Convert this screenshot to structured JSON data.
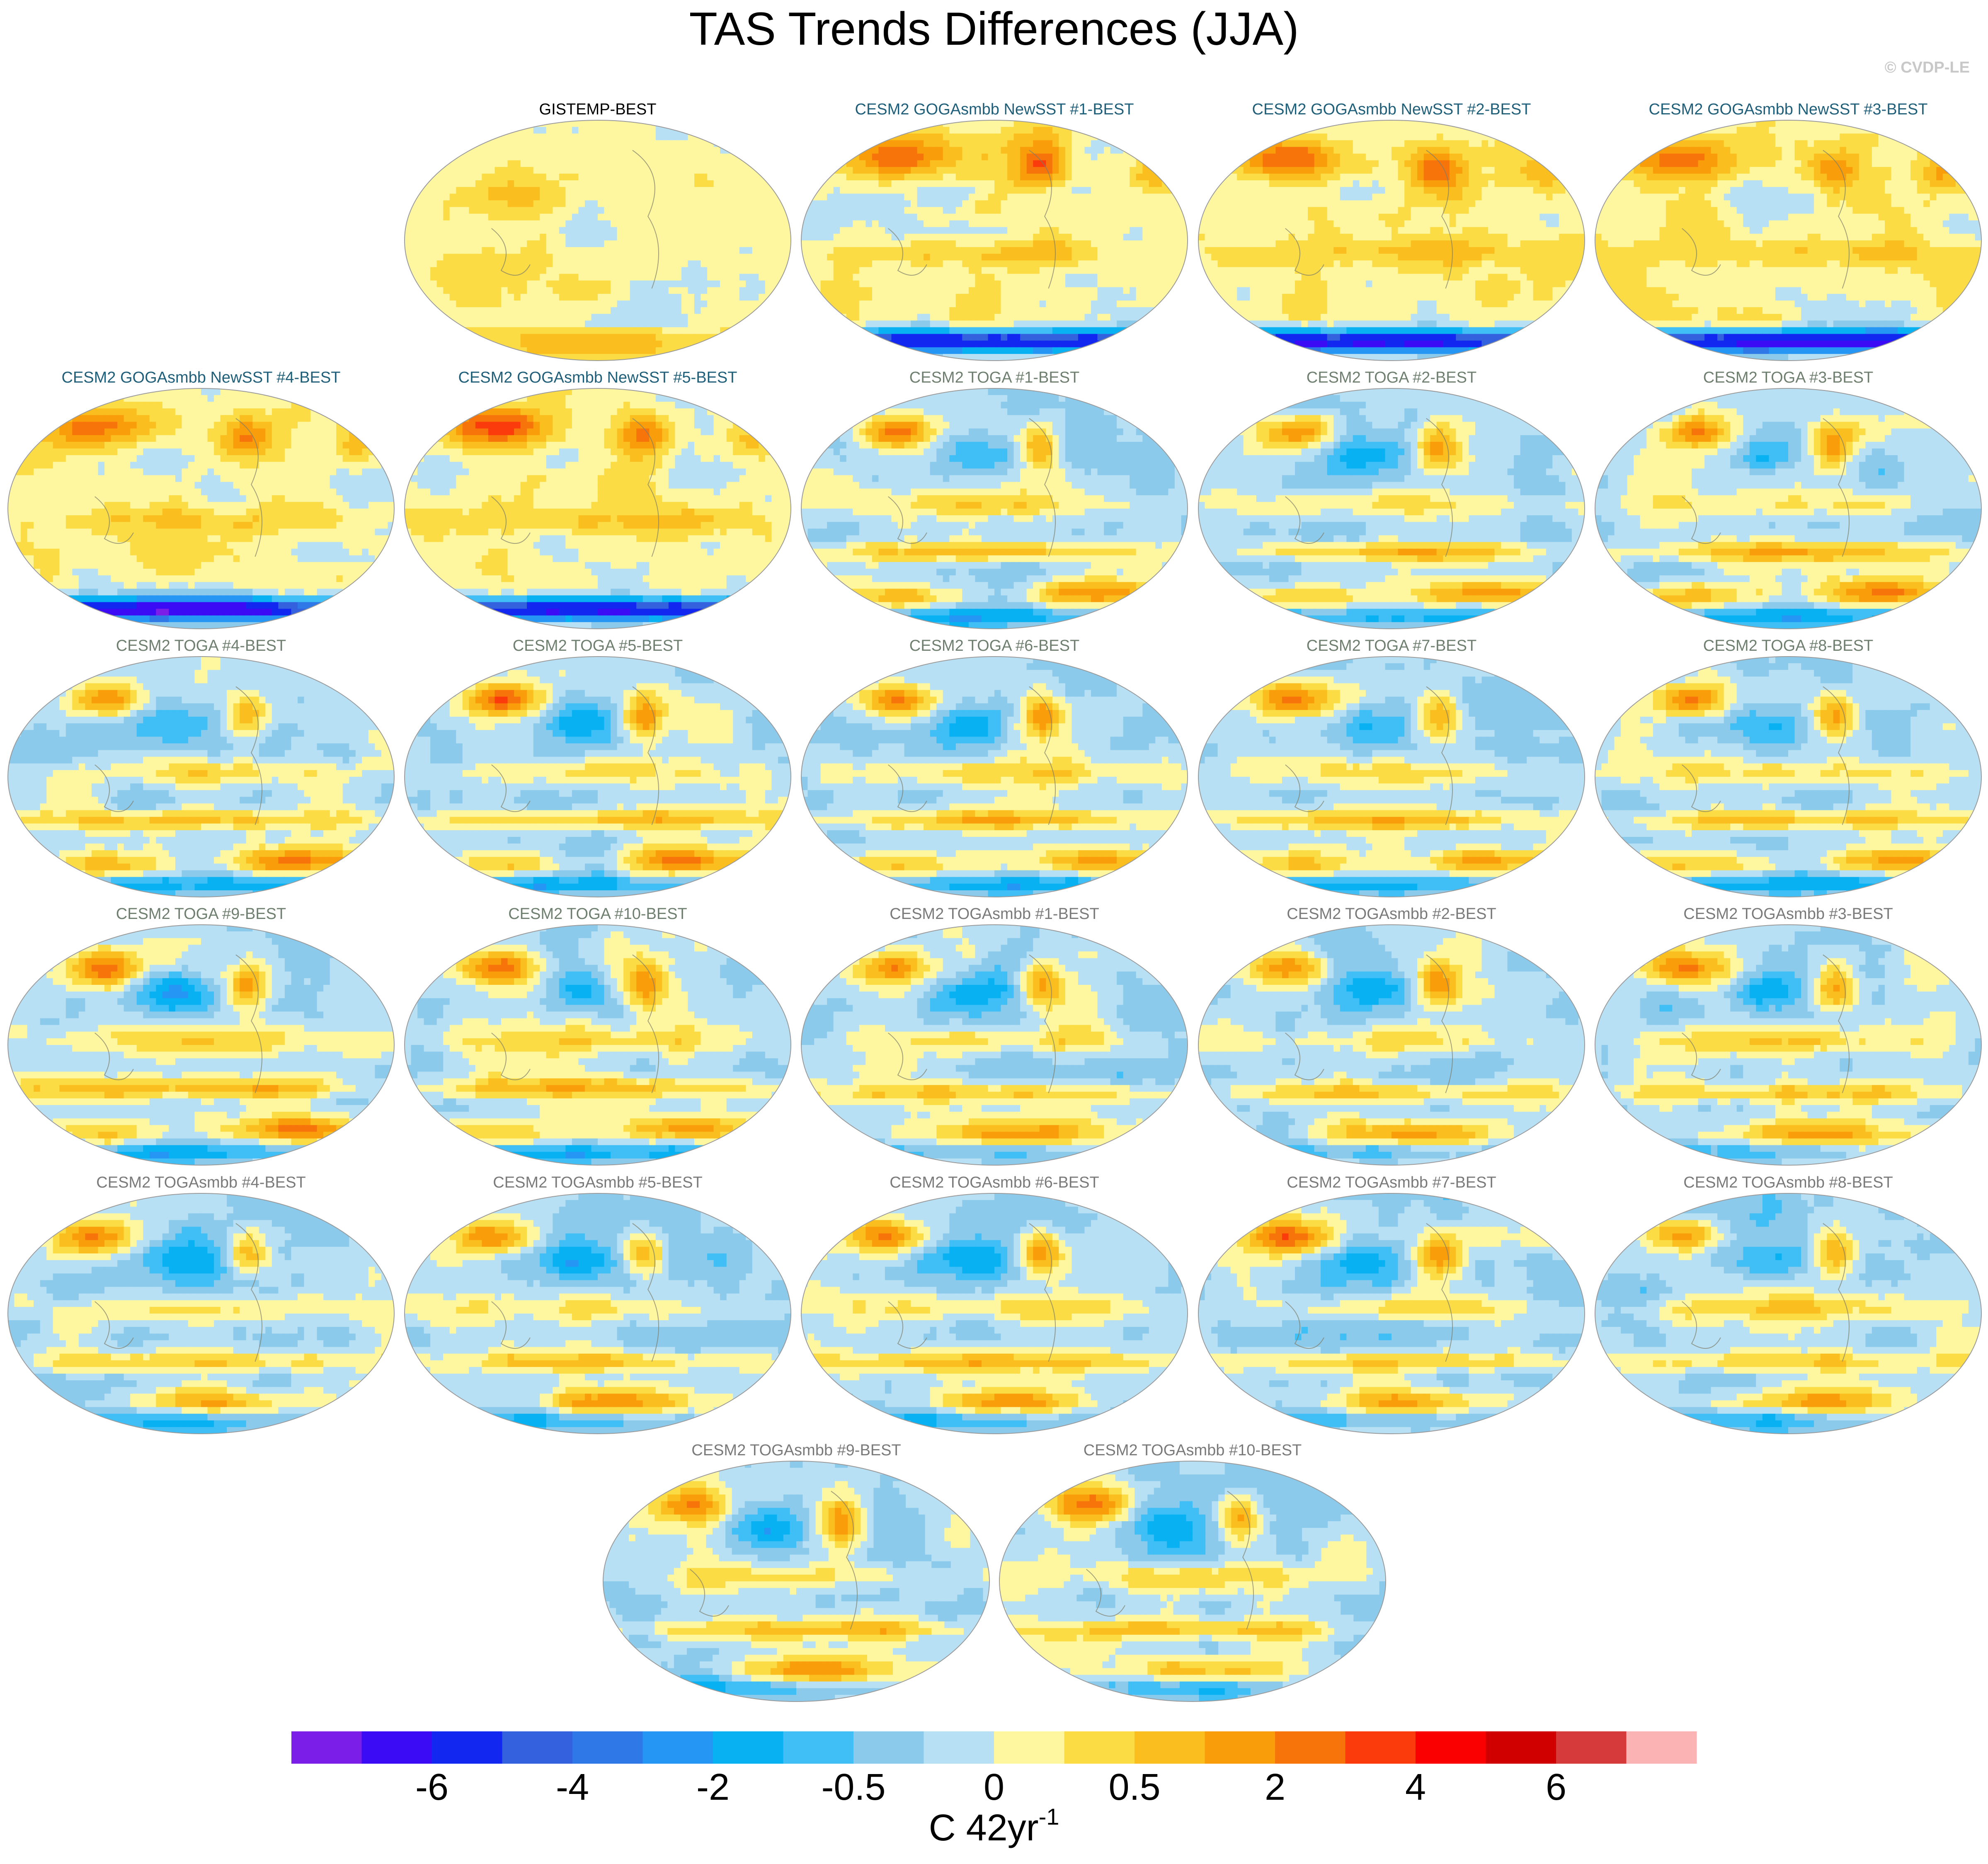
{
  "figure": {
    "title": "TAS Trends Differences (JJA)",
    "credit": "© CVDP-LE"
  },
  "panels": [
    {
      "title": "GISTEMP-BEST",
      "color": "#000000",
      "row": 0,
      "col": 1,
      "style": "obs"
    },
    {
      "title": "CESM2 GOGAsmbb NewSST #1-BEST",
      "color": "#1f5f7a",
      "row": 0,
      "col": 2,
      "style": "goga"
    },
    {
      "title": "CESM2 GOGAsmbb NewSST #2-BEST",
      "color": "#1f5f7a",
      "row": 0,
      "col": 3,
      "style": "goga"
    },
    {
      "title": "CESM2 GOGAsmbb NewSST #3-BEST",
      "color": "#1f5f7a",
      "row": 0,
      "col": 4,
      "style": "goga"
    },
    {
      "title": "CESM2 GOGAsmbb NewSST #4-BEST",
      "color": "#1f5f7a",
      "row": 1,
      "col": 0,
      "style": "goga"
    },
    {
      "title": "CESM2 GOGAsmbb NewSST #5-BEST",
      "color": "#1f5f7a",
      "row": 1,
      "col": 1,
      "style": "goga"
    },
    {
      "title": "CESM2 TOGA #1-BEST",
      "color": "#6f7f6f",
      "row": 1,
      "col": 2,
      "style": "toga"
    },
    {
      "title": "CESM2 TOGA #2-BEST",
      "color": "#6f7f6f",
      "row": 1,
      "col": 3,
      "style": "toga"
    },
    {
      "title": "CESM2 TOGA #3-BEST",
      "color": "#6f7f6f",
      "row": 1,
      "col": 4,
      "style": "toga"
    },
    {
      "title": "CESM2 TOGA #4-BEST",
      "color": "#6f7f6f",
      "row": 2,
      "col": 0,
      "style": "toga"
    },
    {
      "title": "CESM2 TOGA #5-BEST",
      "color": "#6f7f6f",
      "row": 2,
      "col": 1,
      "style": "toga"
    },
    {
      "title": "CESM2 TOGA #6-BEST",
      "color": "#6f7f6f",
      "row": 2,
      "col": 2,
      "style": "toga"
    },
    {
      "title": "CESM2 TOGA #7-BEST",
      "color": "#6f7f6f",
      "row": 2,
      "col": 3,
      "style": "toga"
    },
    {
      "title": "CESM2 TOGA #8-BEST",
      "color": "#6f7f6f",
      "row": 2,
      "col": 4,
      "style": "toga"
    },
    {
      "title": "CESM2 TOGA #9-BEST",
      "color": "#6f7f6f",
      "row": 3,
      "col": 0,
      "style": "toga"
    },
    {
      "title": "CESM2 TOGA #10-BEST",
      "color": "#6f7f6f",
      "row": 3,
      "col": 1,
      "style": "toga"
    },
    {
      "title": "CESM2 TOGAsmbb #1-BEST",
      "color": "#7a7a7a",
      "row": 3,
      "col": 2,
      "style": "smbb"
    },
    {
      "title": "CESM2 TOGAsmbb #2-BEST",
      "color": "#7a7a7a",
      "row": 3,
      "col": 3,
      "style": "smbb"
    },
    {
      "title": "CESM2 TOGAsmbb #3-BEST",
      "color": "#7a7a7a",
      "row": 3,
      "col": 4,
      "style": "smbb"
    },
    {
      "title": "CESM2 TOGAsmbb #4-BEST",
      "color": "#7a7a7a",
      "row": 4,
      "col": 0,
      "style": "smbb"
    },
    {
      "title": "CESM2 TOGAsmbb #5-BEST",
      "color": "#7a7a7a",
      "row": 4,
      "col": 1,
      "style": "smbb"
    },
    {
      "title": "CESM2 TOGAsmbb #6-BEST",
      "color": "#7a7a7a",
      "row": 4,
      "col": 2,
      "style": "smbb"
    },
    {
      "title": "CESM2 TOGAsmbb #7-BEST",
      "color": "#7a7a7a",
      "row": 4,
      "col": 3,
      "style": "smbb"
    },
    {
      "title": "CESM2 TOGAsmbb #8-BEST",
      "color": "#7a7a7a",
      "row": 4,
      "col": 4,
      "style": "smbb"
    },
    {
      "title": "CESM2 TOGAsmbb #9-BEST",
      "color": "#7a7a7a",
      "row": 5,
      "col": 0,
      "style": "smbb"
    },
    {
      "title": "CESM2 TOGAsmbb #10-BEST",
      "color": "#7a7a7a",
      "row": 5,
      "col": 1,
      "style": "smbb"
    }
  ],
  "colorbar": {
    "colors": [
      "#7b1fe8",
      "#3b0bf5",
      "#1227ef",
      "#3461de",
      "#2f78e8",
      "#2596f4",
      "#08b2f2",
      "#3fbff5",
      "#8ccaeb",
      "#b8e0f5",
      "#fff7a0",
      "#fbdc45",
      "#fabf1f",
      "#f99d0b",
      "#f7740b",
      "#fb3b0b",
      "#fb0000",
      "#d10000",
      "#d73a3a",
      "#fcb3b3"
    ],
    "tick_labels": [
      "-6",
      "-4",
      "-2",
      "-0.5",
      "0",
      "0.5",
      "2",
      "4",
      "6"
    ],
    "tick_boundaries": [
      2,
      4,
      6,
      8,
      10,
      12,
      14,
      16,
      18
    ],
    "unit_base": "C 42yr",
    "unit_exp": "-1"
  }
}
